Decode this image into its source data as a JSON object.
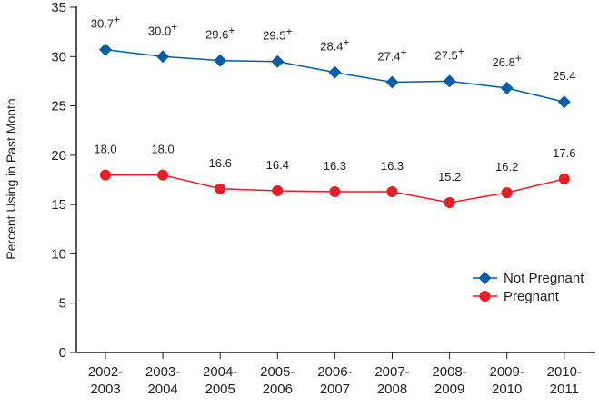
{
  "chart_data": {
    "type": "line",
    "title": "",
    "xlabel": "",
    "ylabel": "Percent Using in Past Month",
    "ylim": [
      0,
      35
    ],
    "yticks": [
      0,
      5,
      10,
      15,
      20,
      25,
      30,
      35
    ],
    "grid": false,
    "legend_placement": "bottom-right",
    "categories": [
      [
        "2002-",
        "2003"
      ],
      [
        "2003-",
        "2004"
      ],
      [
        "2004-",
        "2005"
      ],
      [
        "2005-",
        "2006"
      ],
      [
        "2006-",
        "2007"
      ],
      [
        "2007-",
        "2008"
      ],
      [
        "2008-",
        "2009"
      ],
      [
        "2009-",
        "2010"
      ],
      [
        "2010-",
        "2011"
      ]
    ],
    "series": [
      {
        "name": "Not Pregnant",
        "color": "#005daa",
        "marker": "diamond",
        "values": [
          30.7,
          30.0,
          29.6,
          29.5,
          28.4,
          27.4,
          27.5,
          26.8,
          25.4
        ],
        "labels": [
          "30.7",
          "30.0",
          "29.6",
          "29.5",
          "28.4",
          "27.4",
          "27.5",
          "26.8",
          "25.4"
        ],
        "label_marks": [
          "+",
          "+",
          "+",
          "+",
          "+",
          "+",
          "+",
          "+",
          ""
        ]
      },
      {
        "name": "Pregnant",
        "color": "#ed1c24",
        "marker": "circle",
        "values": [
          18.0,
          18.0,
          16.6,
          16.4,
          16.3,
          16.3,
          15.2,
          16.2,
          17.6
        ],
        "labels": [
          "18.0",
          "18.0",
          "16.6",
          "16.4",
          "16.3",
          "16.3",
          "15.2",
          "16.2",
          "17.6"
        ],
        "label_marks": [
          "",
          "",
          "",
          "",
          "",
          "",
          "",
          "",
          ""
        ]
      }
    ]
  }
}
